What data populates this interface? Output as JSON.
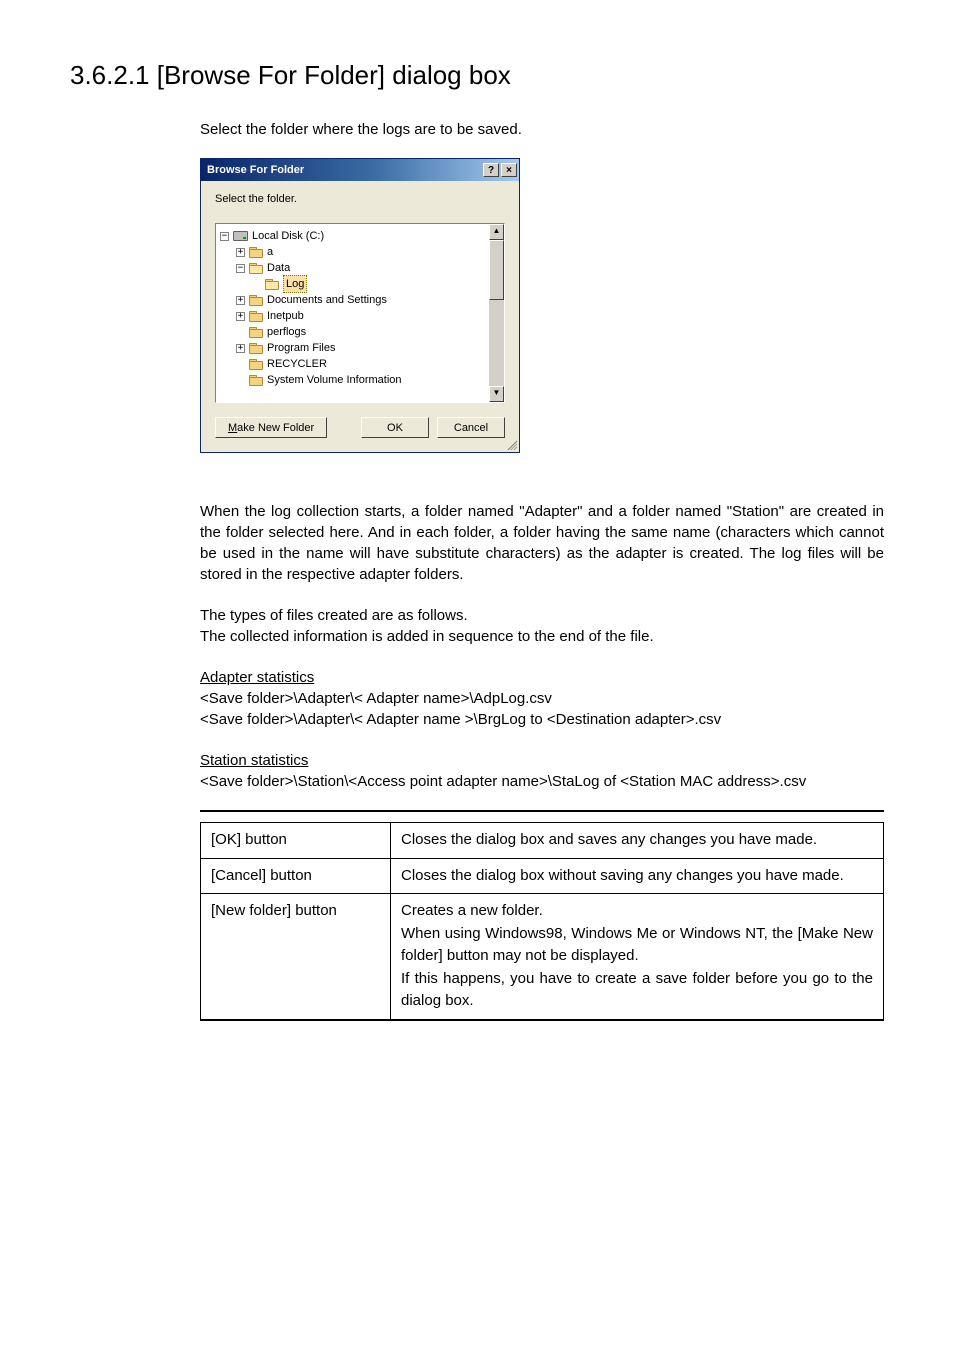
{
  "heading": "3.6.2.1 [Browse For Folder] dialog box",
  "intro": "Select the folder where the logs are to be saved.",
  "dialog": {
    "title": "Browse For Folder",
    "help_glyph": "?",
    "close_glyph": "×",
    "instruction": "Select the folder.",
    "scroll_up": "▲",
    "scroll_down": "▼",
    "tree": {
      "root": {
        "exp": "−",
        "label": "Local Disk (C:)"
      },
      "a": {
        "exp": "+",
        "label": "a"
      },
      "data": {
        "exp": "−",
        "label": "Data"
      },
      "log": {
        "label": "Log"
      },
      "docs": {
        "exp": "+",
        "label": "Documents and Settings"
      },
      "inetpub": {
        "exp": "+",
        "label": "Inetpub"
      },
      "perflogs": {
        "label": "perflogs"
      },
      "progf": {
        "exp": "+",
        "label": "Program Files"
      },
      "rec": {
        "label": "RECYCLER"
      },
      "svi": {
        "label": "System Volume Information"
      }
    },
    "buttons": {
      "makefolder_prefix": "M",
      "makefolder_rest": "ake New Folder",
      "ok": "OK",
      "cancel": "Cancel"
    }
  },
  "body": {
    "p1": "When the log collection starts, a folder named \"Adapter\" and a folder named \"Station\" are created in the folder selected here. And in each folder, a folder having the same name (characters which cannot be used in the name will have substitute characters) as the adapter is created. The log files will be stored in the respective adapter folders.",
    "p2a": "The types of files created are as follows.",
    "p2b": "The collected information is added in sequence to the end of the file.",
    "adapter_title": "Adapter statistics",
    "adapter_l1": "<Save folder>\\Adapter\\< Adapter name>\\AdpLog.csv",
    "adapter_l2": "<Save folder>\\Adapter\\< Adapter name >\\BrgLog to <Destination adapter>.csv",
    "station_title": "Station statistics",
    "station_l1": "<Save folder>\\Station\\<Access point adapter name>\\StaLog of <Station MAC address>.csv"
  },
  "table": {
    "rows": [
      {
        "name": "[OK] button",
        "desc": "Closes the dialog box and saves any changes you have made."
      },
      {
        "name": "[Cancel] button",
        "desc": "Closes the dialog box without saving any changes you have made."
      },
      {
        "name": "[New folder] button",
        "desc": "Creates a new folder.\nWhen using Windows98, Windows Me or Windows NT, the [Make New folder] button may not be displayed.\nIf this happens, you have to create a save folder before you go to the dialog box."
      }
    ]
  }
}
